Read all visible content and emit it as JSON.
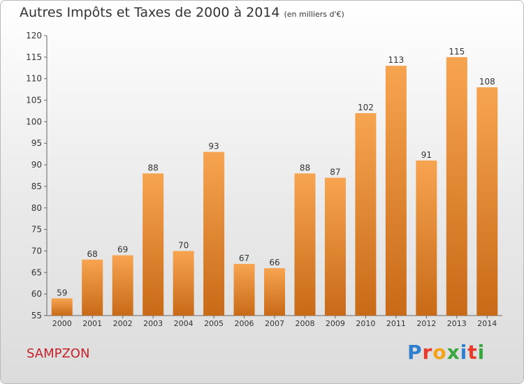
{
  "title": "Autres Impôts et Taxes de 2000 à 2014",
  "subtitle": "(en milliers d'€)",
  "town": "SAMPZON",
  "logo": {
    "text": "Proxiti",
    "colors": [
      "#2e7fd0",
      "#e8392a",
      "#f2a31b",
      "#3aa640",
      "#2e7fd0",
      "#e8392a",
      "#3aa640"
    ]
  },
  "chart_data": {
    "type": "bar",
    "categories": [
      "2000",
      "2001",
      "2002",
      "2003",
      "2004",
      "2005",
      "2006",
      "2007",
      "2008",
      "2009",
      "2010",
      "2011",
      "2012",
      "2013",
      "2014"
    ],
    "values": [
      59,
      68,
      69,
      88,
      70,
      93,
      67,
      66,
      88,
      87,
      102,
      113,
      91,
      115,
      108
    ],
    "ylim": [
      55,
      120
    ],
    "yticks": [
      55,
      60,
      65,
      70,
      75,
      80,
      85,
      90,
      95,
      100,
      105,
      110,
      115,
      120
    ],
    "grid": false,
    "bar_color_top": "#f7a450",
    "bar_color_bottom": "#c86a17"
  }
}
